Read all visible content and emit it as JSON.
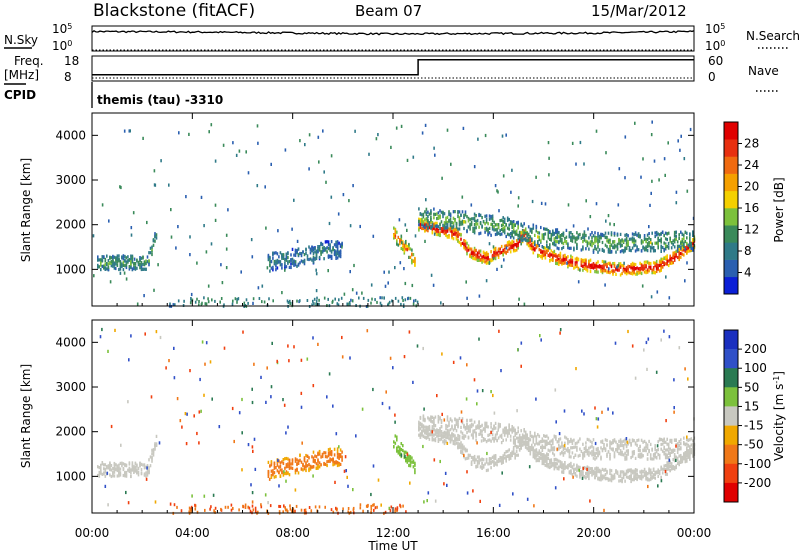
{
  "header": {
    "station": "Blackstone (fitACF)",
    "beam": "Beam 07",
    "date": "15/Mar/2012"
  },
  "summary_panels": {
    "nsky_label": "N.Sky",
    "nsearch_label": "N.Search",
    "nsky_ticks": [
      "10^5",
      "10^0"
    ],
    "nsearch_ticks": [
      "10^5",
      "10^0"
    ],
    "freq_label": "Freq.",
    "freq_unit": "[MHz]",
    "freq_ticks": [
      "18",
      "8"
    ],
    "nave_label": "Nave",
    "nave_ticks": [
      "60",
      "0"
    ],
    "cpid_label": "CPID",
    "cpid_text": "themis (tau) -3310"
  },
  "colors": {
    "power_scale": [
      "#0b1fd6",
      "#2a5fb0",
      "#2f7a88",
      "#3a8a5a",
      "#7cc13c",
      "#f4d000",
      "#f5a000",
      "#f06a10",
      "#e83010",
      "#e00000"
    ],
    "velocity_scale": [
      "#1a2fbf",
      "#3050c8",
      "#2a7a52",
      "#7cc13c",
      "#c8c8c0",
      "#f0a800",
      "#f07818",
      "#f04010",
      "#e00000"
    ],
    "axis": "#000000"
  },
  "chart_data": [
    {
      "type": "line",
      "title": "N.Sky / N.Search",
      "x_axis": "Time UT",
      "x": [
        "00:00",
        "04:00",
        "08:00",
        "12:00",
        "16:00",
        "20:00",
        "00:00"
      ],
      "series": [
        {
          "name": "N.Sky",
          "values_log10": [
            3.9,
            3.8,
            3.6,
            3.4,
            3.5,
            3.6,
            3.9
          ]
        },
        {
          "name": "N.Search",
          "values_log10": [
            0,
            0,
            0,
            0,
            0,
            0,
            0
          ]
        }
      ],
      "ylim_log10": [
        0,
        5
      ]
    },
    {
      "type": "line",
      "title": "Freq. [MHz] / Nave",
      "x": [
        "00:00",
        "13:00",
        "13:00",
        "24:00"
      ],
      "series": [
        {
          "name": "Freq.",
          "values": [
            10.5,
            10.5,
            16.5,
            16.5
          ]
        },
        {
          "name": "Nave",
          "values": [
            0,
            0,
            0,
            0
          ]
        }
      ],
      "ylim": [
        8,
        18
      ]
    },
    {
      "type": "heatmap",
      "title": "Power",
      "ylabel": "Slant Range [km]",
      "yticks": [
        "1000",
        "2000",
        "3000",
        "4000"
      ],
      "ylim": [
        180,
        4500
      ],
      "xlim_hours": [
        0,
        24
      ],
      "colorbar_label": "Power [dB]",
      "colorbar_ticks": [
        "4",
        "8",
        "12",
        "16",
        "20",
        "24",
        "28"
      ],
      "colorbar_range": [
        0,
        30
      ],
      "traces": [
        {
          "t": [
            0.2,
            2.2,
            2.6
          ],
          "r": [
            1150,
            1150,
            1900
          ],
          "dr": 160,
          "v": 10
        },
        {
          "t": [
            7.0,
            8.5,
            9.5,
            10.0
          ],
          "r": [
            1150,
            1300,
            1450,
            1400
          ],
          "dr": 200,
          "v": 7
        },
        {
          "t": [
            12.0,
            12.6,
            12.9
          ],
          "r": [
            1800,
            1400,
            1150
          ],
          "dr": 160,
          "v": 20
        },
        {
          "t": [
            13.0,
            14.5,
            15.0,
            15.7,
            16.2,
            16.9,
            17.2,
            17.6,
            18.5,
            19.5,
            21.0,
            22.5,
            23.3,
            24.0
          ],
          "r": [
            2000,
            1800,
            1400,
            1250,
            1400,
            1550,
            1800,
            1450,
            1250,
            1100,
            1000,
            1050,
            1300,
            1600
          ],
          "dr": 130,
          "v": 26
        },
        {
          "t": [
            13.0,
            14.5,
            15.5,
            16.5,
            18.0,
            20.0,
            22.0,
            24.0
          ],
          "r": [
            2150,
            2100,
            2000,
            1950,
            1700,
            1600,
            1600,
            1650
          ],
          "dr": 220,
          "v": 11
        }
      ]
    },
    {
      "type": "heatmap",
      "title": "Velocity",
      "ylabel": "Slant Range [km]",
      "yticks": [
        "1000",
        "2000",
        "3000",
        "4000"
      ],
      "ylim": [
        180,
        4500
      ],
      "xlim_hours": [
        0,
        24
      ],
      "colorbar_label": "Velocity [m s^-1]",
      "colorbar_ticks": [
        "200",
        "100",
        "50",
        "15",
        "-15",
        "-50",
        "-100",
        "-200"
      ],
      "colorbar_range": [
        -250,
        250
      ],
      "traces": [
        {
          "t": [
            0.2,
            2.2,
            2.6
          ],
          "r": [
            1150,
            1150,
            1900
          ],
          "dr": 160,
          "v": 0
        },
        {
          "t": [
            7.0,
            8.5,
            9.5,
            10.0
          ],
          "r": [
            1150,
            1300,
            1450,
            1400
          ],
          "dr": 200,
          "v": -70
        },
        {
          "t": [
            12.0,
            12.6,
            12.9
          ],
          "r": [
            1800,
            1400,
            1150
          ],
          "dr": 160,
          "v": 40
        },
        {
          "t": [
            13.0,
            14.5,
            15.0,
            15.7,
            16.2,
            16.9,
            17.2,
            17.6,
            18.5,
            19.5,
            21.0,
            22.5,
            23.3,
            24.0
          ],
          "r": [
            2000,
            1800,
            1400,
            1250,
            1400,
            1550,
            1800,
            1450,
            1250,
            1100,
            1000,
            1050,
            1300,
            1600
          ],
          "dr": 130,
          "v": 0
        },
        {
          "t": [
            13.0,
            14.5,
            15.5,
            16.5,
            18.0,
            20.0,
            22.0,
            24.0
          ],
          "r": [
            2150,
            2100,
            2000,
            1950,
            1700,
            1600,
            1600,
            1650
          ],
          "dr": 220,
          "v": 0
        }
      ]
    }
  ],
  "x_axis": {
    "ticks": [
      "00:00",
      "04:00",
      "08:00",
      "12:00",
      "16:00",
      "20:00",
      "00:00"
    ],
    "label": "Time UT"
  }
}
